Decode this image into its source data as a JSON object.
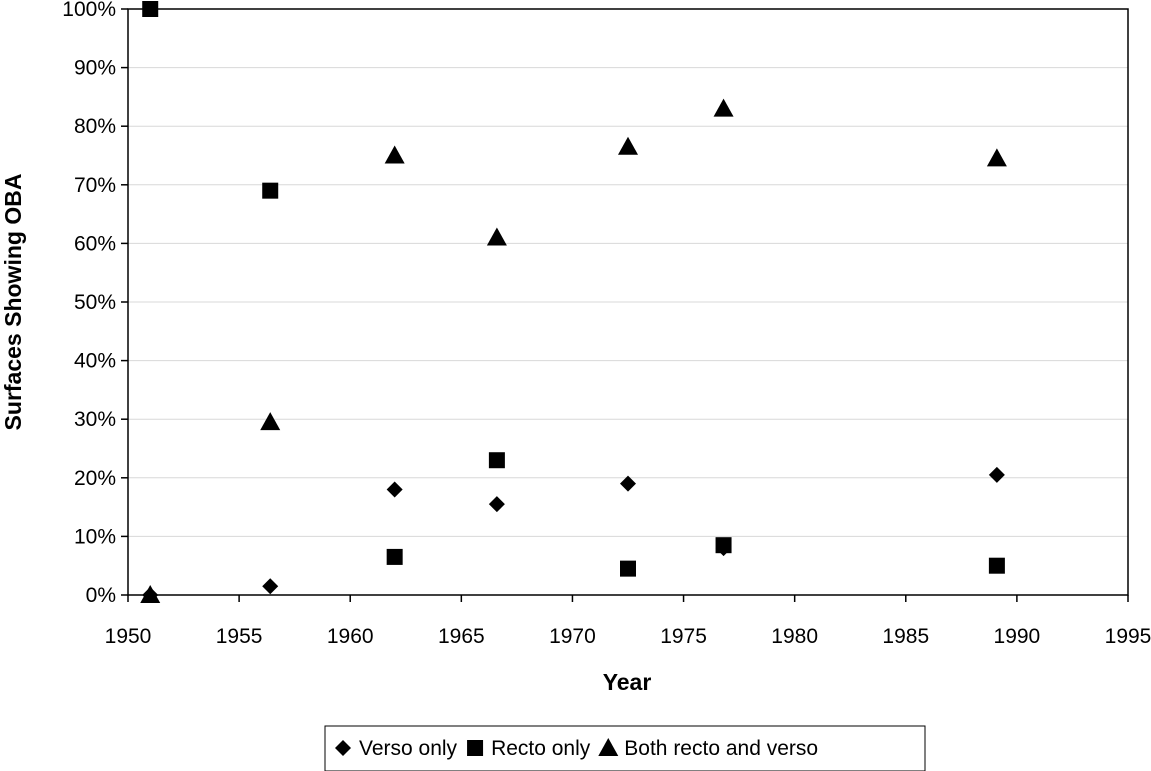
{
  "chart_data": {
    "type": "scatter",
    "title": "",
    "xlabel": "Year",
    "ylabel": "Surfaces Showing OBA",
    "xlim": [
      1950,
      1995
    ],
    "ylim": [
      0,
      100
    ],
    "x_ticks": [
      "1950",
      "1955",
      "1960",
      "1965",
      "1970",
      "1975",
      "1980",
      "1985",
      "1990",
      "1995"
    ],
    "y_ticks": [
      "0%",
      "10%",
      "20%",
      "30%",
      "40%",
      "50%",
      "60%",
      "70%",
      "80%",
      "90%",
      "100%"
    ],
    "grid": "horizontal",
    "legend_position": "bottom",
    "series": [
      {
        "name": "Verso only",
        "marker": "diamond",
        "color": "#000000",
        "points": [
          {
            "x": 1951.0,
            "y": 0
          },
          {
            "x": 1956.4,
            "y": 1.5
          },
          {
            "x": 1962.0,
            "y": 18
          },
          {
            "x": 1966.6,
            "y": 15.5
          },
          {
            "x": 1972.5,
            "y": 19
          },
          {
            "x": 1976.8,
            "y": 8
          },
          {
            "x": 1989.1,
            "y": 20.5
          }
        ]
      },
      {
        "name": "Recto only",
        "marker": "square",
        "color": "#000000",
        "points": [
          {
            "x": 1951.0,
            "y": 100
          },
          {
            "x": 1956.4,
            "y": 69
          },
          {
            "x": 1962.0,
            "y": 6.5
          },
          {
            "x": 1966.6,
            "y": 23
          },
          {
            "x": 1972.5,
            "y": 4.5
          },
          {
            "x": 1976.8,
            "y": 8.5
          },
          {
            "x": 1989.1,
            "y": 5
          }
        ]
      },
      {
        "name": "Both recto and verso",
        "marker": "triangle",
        "color": "#000000",
        "points": [
          {
            "x": 1951.0,
            "y": 0
          },
          {
            "x": 1956.4,
            "y": 29.5
          },
          {
            "x": 1962.0,
            "y": 75
          },
          {
            "x": 1966.6,
            "y": 61
          },
          {
            "x": 1972.5,
            "y": 76.5
          },
          {
            "x": 1976.8,
            "y": 83
          },
          {
            "x": 1989.1,
            "y": 74.5
          }
        ]
      }
    ]
  }
}
